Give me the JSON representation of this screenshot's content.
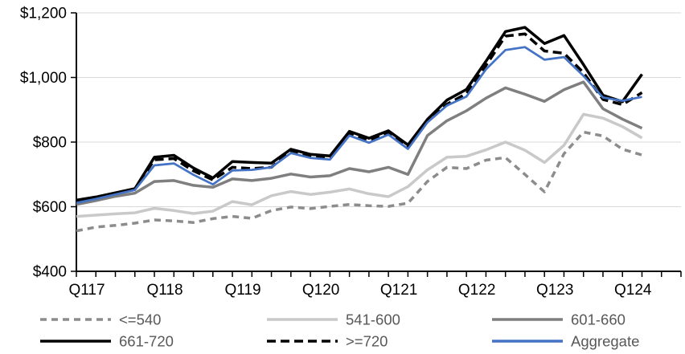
{
  "chart_data": {
    "type": "line",
    "title": "",
    "xlabel": "",
    "ylabel": "",
    "ylim": [
      400,
      1200
    ],
    "y_tick_step": 200,
    "y_tick_labels": [
      "$1,200",
      "$1,000",
      "$800",
      "$600",
      "$400"
    ],
    "x_year_labels": [
      "Q117",
      "Q118",
      "Q119",
      "Q120",
      "Q121",
      "Q122",
      "Q123",
      "Q124"
    ],
    "x": [
      "Q117",
      "Q217",
      "Q317",
      "Q417",
      "Q118",
      "Q218",
      "Q318",
      "Q418",
      "Q119",
      "Q219",
      "Q319",
      "Q419",
      "Q120",
      "Q220",
      "Q320",
      "Q420",
      "Q121",
      "Q221",
      "Q321",
      "Q421",
      "Q122",
      "Q222",
      "Q322",
      "Q422",
      "Q123",
      "Q223",
      "Q323",
      "Q423",
      "Q124",
      "Q224"
    ],
    "grid": true,
    "grid_color": "#D9D9D9",
    "axis_color": "#000000",
    "legend_position": "bottom",
    "legend_text_color": "#595959",
    "series": [
      {
        "name": "<=540",
        "slug": "lte-540",
        "color": "#8C8C8C",
        "dash": "8 6",
        "width": 3.5,
        "values": [
          525,
          537,
          542,
          549,
          559,
          556,
          551,
          563,
          570,
          564,
          588,
          599,
          594,
          601,
          607,
          603,
          601,
          611,
          678,
          722,
          718,
          744,
          752,
          700,
          646,
          764,
          831,
          819,
          778,
          760
        ]
      },
      {
        "name": "541-600",
        "slug": "541-600",
        "color": "#C9C9C9",
        "dash": "",
        "width": 3.5,
        "values": [
          570,
          574,
          578,
          581,
          595,
          588,
          579,
          586,
          616,
          606,
          634,
          647,
          638,
          645,
          655,
          640,
          631,
          662,
          714,
          753,
          756,
          776,
          800,
          775,
          737,
          790,
          886,
          874,
          848,
          813
        ]
      },
      {
        "name": "601-660",
        "slug": "601-660",
        "color": "#7F7F7F",
        "dash": "",
        "width": 3.5,
        "values": [
          607,
          619,
          632,
          642,
          678,
          681,
          666,
          660,
          686,
          681,
          688,
          701,
          692,
          696,
          718,
          708,
          722,
          700,
          820,
          866,
          897,
          936,
          968,
          948,
          926,
          962,
          986,
          903,
          871,
          843
        ]
      },
      {
        "name": "661-720",
        "slug": "661-720",
        "color": "#000000",
        "dash": "",
        "width": 3.5,
        "values": [
          620,
          630,
          643,
          656,
          753,
          759,
          720,
          689,
          740,
          737,
          735,
          778,
          762,
          757,
          833,
          812,
          835,
          791,
          870,
          930,
          963,
          1050,
          1142,
          1155,
          1105,
          1130,
          1040,
          945,
          925,
          1010
        ]
      },
      {
        "name": ">=720",
        "slug": "gte-720",
        "color": "#000000",
        "dash": "11 6",
        "width": 3.5,
        "values": [
          615,
          627,
          640,
          654,
          745,
          749,
          711,
          683,
          722,
          718,
          722,
          774,
          758,
          752,
          828,
          806,
          828,
          786,
          866,
          917,
          950,
          1037,
          1128,
          1135,
          1082,
          1075,
          1015,
          932,
          916,
          953
        ]
      },
      {
        "name": "Aggregate",
        "slug": "aggregate",
        "color": "#4472C4",
        "dash": "",
        "width": 2.75,
        "values": [
          612,
          624,
          638,
          652,
          728,
          734,
          699,
          669,
          712,
          714,
          722,
          766,
          751,
          746,
          820,
          798,
          823,
          779,
          861,
          913,
          941,
          1025,
          1085,
          1094,
          1055,
          1063,
          1005,
          938,
          928,
          940
        ]
      }
    ]
  }
}
